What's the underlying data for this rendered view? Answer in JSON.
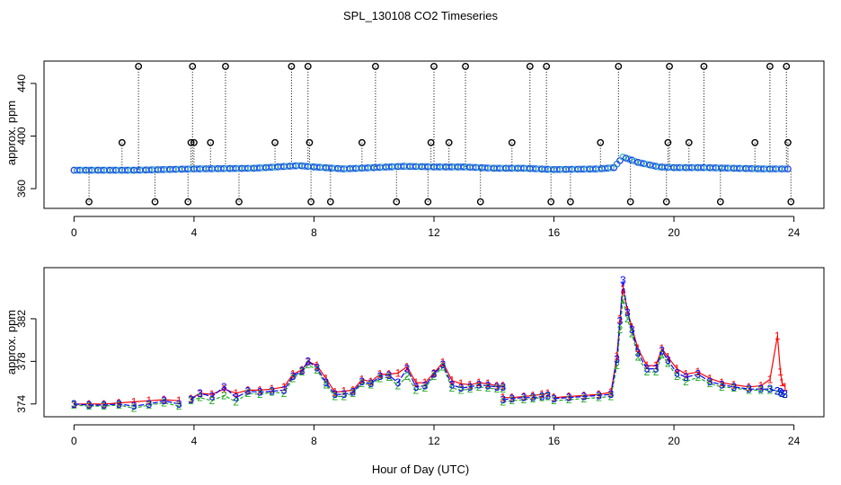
{
  "chart_data": [
    {
      "type": "scatter",
      "title": "SPL_130108  CO2 Timeseries",
      "xlabel": "",
      "ylabel": "approx. ppm",
      "xlim": [
        -1,
        25
      ],
      "ylim": [
        345,
        457
      ],
      "xticks": [
        0,
        4,
        8,
        12,
        16,
        20,
        24
      ],
      "xtick_labels": [
        "0",
        "4",
        "8",
        "12",
        "16",
        "20",
        "24"
      ],
      "yticks": [
        360,
        400,
        440
      ],
      "ytick_labels": [
        "360",
        "400",
        "440"
      ],
      "baseline_segments": [
        {
          "x": [
            0.0,
            2.0,
            4.0,
            6.0,
            7.5,
            8.0,
            9.0,
            10.0,
            11.0,
            12.0,
            13.0,
            14.0,
            15.0,
            16.0,
            17.5,
            18.0,
            18.3,
            18.8,
            19.5,
            20.0,
            21.0,
            22.0,
            23.0,
            23.9
          ],
          "y": [
            374.0,
            374.0,
            375.0,
            375.5,
            377.5,
            376.5,
            375.0,
            376.0,
            377.0,
            376.5,
            376.5,
            375.5,
            375.5,
            374.5,
            375.0,
            376.0,
            384.0,
            380.0,
            376.5,
            376.0,
            376.0,
            375.5,
            375.0,
            375.0
          ]
        }
      ],
      "outliers": {
        "x": [
          0.5,
          1.6,
          2.15,
          2.7,
          3.8,
          3.9,
          3.95,
          4.0,
          4.55,
          5.05,
          5.5,
          6.7,
          7.25,
          7.8,
          7.85,
          7.9,
          8.55,
          9.6,
          10.05,
          10.75,
          11.8,
          11.9,
          12.0,
          12.5,
          13.05,
          13.55,
          14.6,
          15.2,
          15.75,
          15.9,
          16.55,
          17.55,
          18.15,
          18.55,
          19.75,
          19.8,
          19.85,
          20.5,
          21.0,
          21.55,
          22.7,
          23.2,
          23.75,
          23.8,
          23.9
        ],
        "y": [
          350,
          395,
          453,
          350,
          350,
          395,
          453,
          395,
          395,
          453,
          350,
          395,
          453,
          453,
          395,
          350,
          350,
          395,
          453,
          350,
          350,
          395,
          453,
          395,
          453,
          350,
          395,
          453,
          453,
          350,
          350,
          395,
          453,
          350,
          350,
          395,
          453,
          395,
          453,
          350,
          395,
          453,
          453,
          395,
          350
        ]
      }
    },
    {
      "type": "line",
      "title": "",
      "xlabel": "Hour of Day (UTC)",
      "ylabel": "approx. ppm",
      "xlim": [
        -1,
        25
      ],
      "ylim": [
        372.8,
        386.8
      ],
      "xticks": [
        0,
        4,
        8,
        12,
        16,
        20,
        24
      ],
      "xtick_labels": [
        "0",
        "4",
        "8",
        "12",
        "16",
        "20",
        "24"
      ],
      "yticks": [
        374,
        378,
        382
      ],
      "ytick_labels": [
        "374",
        "378",
        "382"
      ],
      "series": [
        {
          "name": "1",
          "color": "#FF0000",
          "segments": [
            {
              "x": [
                0.0,
                0.5,
                1.0,
                1.5,
                2.0,
                2.5,
                3.0,
                3.5
              ],
              "y": [
                374.0,
                374.0,
                374.0,
                374.1,
                374.2,
                374.3,
                374.4,
                374.3
              ]
            },
            {
              "x": [
                3.9,
                4.2,
                4.6,
                5.0,
                5.4,
                5.8,
                6.2,
                6.6,
                7.0,
                7.3,
                7.6,
                7.8,
                8.1,
                8.4,
                8.7,
                9.0,
                9.3,
                9.6,
                9.9,
                10.2,
                10.5,
                10.8,
                11.1,
                11.4,
                11.7,
                12.0,
                12.3,
                12.6,
                12.9,
                13.2,
                13.5,
                13.8,
                14.1,
                14.3
              ],
              "y": [
                374.5,
                375.0,
                374.9,
                375.4,
                375.0,
                375.3,
                375.3,
                375.4,
                375.6,
                376.8,
                377.2,
                378.0,
                377.6,
                376.4,
                375.1,
                375.2,
                375.3,
                376.3,
                376.1,
                376.8,
                376.8,
                376.9,
                377.5,
                376.0,
                376.0,
                376.9,
                377.9,
                376.2,
                375.9,
                375.8,
                376.0,
                375.9,
                375.7,
                375.7
              ]
            },
            {
              "x": [
                14.3,
                14.6,
                15.0,
                15.3,
                15.6,
                15.8
              ],
              "y": [
                374.6,
                374.6,
                374.7,
                374.8,
                374.9,
                375.0
              ]
            },
            {
              "x": [
                16.0,
                16.5,
                17.0,
                17.5,
                17.9,
                18.1,
                18.2,
                18.3,
                18.45,
                18.6,
                18.8,
                19.1,
                19.4,
                19.6,
                19.8,
                20.1,
                20.4,
                20.8,
                21.2,
                21.6,
                22.0,
                22.5,
                22.9,
                23.2,
                23.45,
                23.55,
                23.6,
                23.7
              ],
              "y": [
                374.6,
                374.7,
                374.8,
                374.9,
                375.1,
                378.5,
                382.0,
                384.8,
                382.8,
                381.2,
                379.2,
                377.6,
                377.6,
                379.2,
                378.4,
                377.3,
                376.8,
                377.0,
                376.4,
                376.0,
                375.8,
                375.6,
                375.7,
                376.3,
                380.4,
                377.0,
                376.0,
                375.6
              ]
            }
          ]
        },
        {
          "name": "2",
          "color": "#22AA22",
          "segments": [
            {
              "x": [
                0.0,
                0.5,
                1.0,
                1.5,
                2.0,
                2.5,
                3.0,
                3.5
              ],
              "y": [
                373.9,
                373.8,
                373.8,
                373.9,
                373.6,
                373.9,
                374.1,
                373.8
              ]
            },
            {
              "x": [
                3.9,
                4.2,
                4.6,
                5.0,
                5.4,
                5.8,
                6.2,
                6.6,
                7.0,
                7.3,
                7.6,
                7.8,
                8.1,
                8.4,
                8.7,
                9.0,
                9.3,
                9.6,
                9.9,
                10.2,
                10.5,
                10.8,
                11.1,
                11.4,
                11.7,
                12.0,
                12.3,
                12.6,
                12.9,
                13.2,
                13.5,
                13.8,
                14.1,
                14.3
              ],
              "y": [
                374.3,
                374.6,
                374.3,
                374.8,
                374.2,
                375.0,
                374.9,
                375.1,
                375.0,
                376.4,
                377.0,
                377.7,
                377.2,
                375.8,
                374.7,
                374.7,
                375.0,
                375.9,
                375.8,
                376.4,
                376.5,
                375.7,
                376.6,
                375.3,
                375.5,
                376.6,
                377.5,
                375.5,
                375.3,
                375.4,
                375.6,
                375.5,
                375.4,
                375.4
              ]
            },
            {
              "x": [
                14.3,
                14.6,
                15.0,
                15.3,
                15.6,
                15.8
              ],
              "y": [
                374.2,
                374.3,
                374.4,
                374.5,
                374.6,
                374.7
              ]
            },
            {
              "x": [
                16.0,
                16.5,
                17.0,
                17.5,
                17.9,
                18.1,
                18.2,
                18.3,
                18.45,
                18.6,
                18.8,
                19.1,
                19.4,
                19.6,
                19.8,
                20.1,
                20.4,
                20.8,
                21.2,
                21.6,
                22.0,
                22.5,
                22.9,
                23.2,
                23.45,
                23.55,
                23.6,
                23.7
              ],
              "y": [
                374.3,
                374.4,
                374.5,
                374.6,
                374.7,
                377.6,
                381.0,
                383.8,
                382.0,
                380.6,
                378.4,
                377.0,
                377.0,
                378.6,
                377.8,
                376.6,
                376.1,
                376.5,
                375.9,
                375.6,
                375.5,
                375.3,
                375.3,
                375.3,
                375.2,
                375.1,
                375.0,
                374.9
              ]
            }
          ]
        },
        {
          "name": "3",
          "color": "#0000FF",
          "segments": [
            {
              "x": [
                0.0,
                0.5,
                1.0,
                1.5,
                2.0,
                2.5,
                3.0,
                3.5
              ],
              "y": [
                374.0,
                373.9,
                373.9,
                374.0,
                373.8,
                374.0,
                374.3,
                374.0
              ]
            },
            {
              "x": [
                3.9,
                4.2,
                4.6,
                5.0,
                5.4,
                5.8,
                6.2,
                6.6,
                7.0,
                7.3,
                7.6,
                7.8,
                8.1,
                8.4,
                8.7,
                9.0,
                9.3,
                9.6,
                9.9,
                10.2,
                10.5,
                10.8,
                11.1,
                11.4,
                11.7,
                12.0,
                12.3,
                12.6,
                12.9,
                13.2,
                13.5,
                13.8,
                14.1,
                14.3
              ],
              "y": [
                374.4,
                375.0,
                374.7,
                375.6,
                374.6,
                375.2,
                375.1,
                375.2,
                375.3,
                376.6,
                377.1,
                378.0,
                377.4,
                376.0,
                374.9,
                374.9,
                375.1,
                376.1,
                375.9,
                376.6,
                376.7,
                376.0,
                377.3,
                375.6,
                375.7,
                376.8,
                377.7,
                375.8,
                375.5,
                375.6,
                375.8,
                375.7,
                375.6,
                375.6
              ]
            },
            {
              "x": [
                14.3,
                14.6,
                15.0,
                15.3,
                15.6,
                15.8
              ],
              "y": [
                374.4,
                374.5,
                374.6,
                374.6,
                374.7,
                374.8
              ]
            },
            {
              "x": [
                16.0,
                16.5,
                17.0,
                17.5,
                17.9,
                18.1,
                18.2,
                18.3,
                18.45,
                18.6,
                18.8,
                19.1,
                19.4,
                19.6,
                19.8,
                20.1,
                20.4,
                20.8,
                21.2,
                21.6,
                22.0,
                22.5,
                22.9,
                23.2,
                23.45,
                23.55,
                23.6,
                23.7
              ],
              "y": [
                374.5,
                374.6,
                374.7,
                374.8,
                374.9,
                378.2,
                381.8,
                385.6,
                382.6,
                381.0,
                378.8,
                377.3,
                377.3,
                379.0,
                378.1,
                376.9,
                376.5,
                376.8,
                376.1,
                375.8,
                375.6,
                375.4,
                375.4,
                375.4,
                375.2,
                375.1,
                375.0,
                374.9
              ]
            }
          ]
        }
      ]
    }
  ]
}
